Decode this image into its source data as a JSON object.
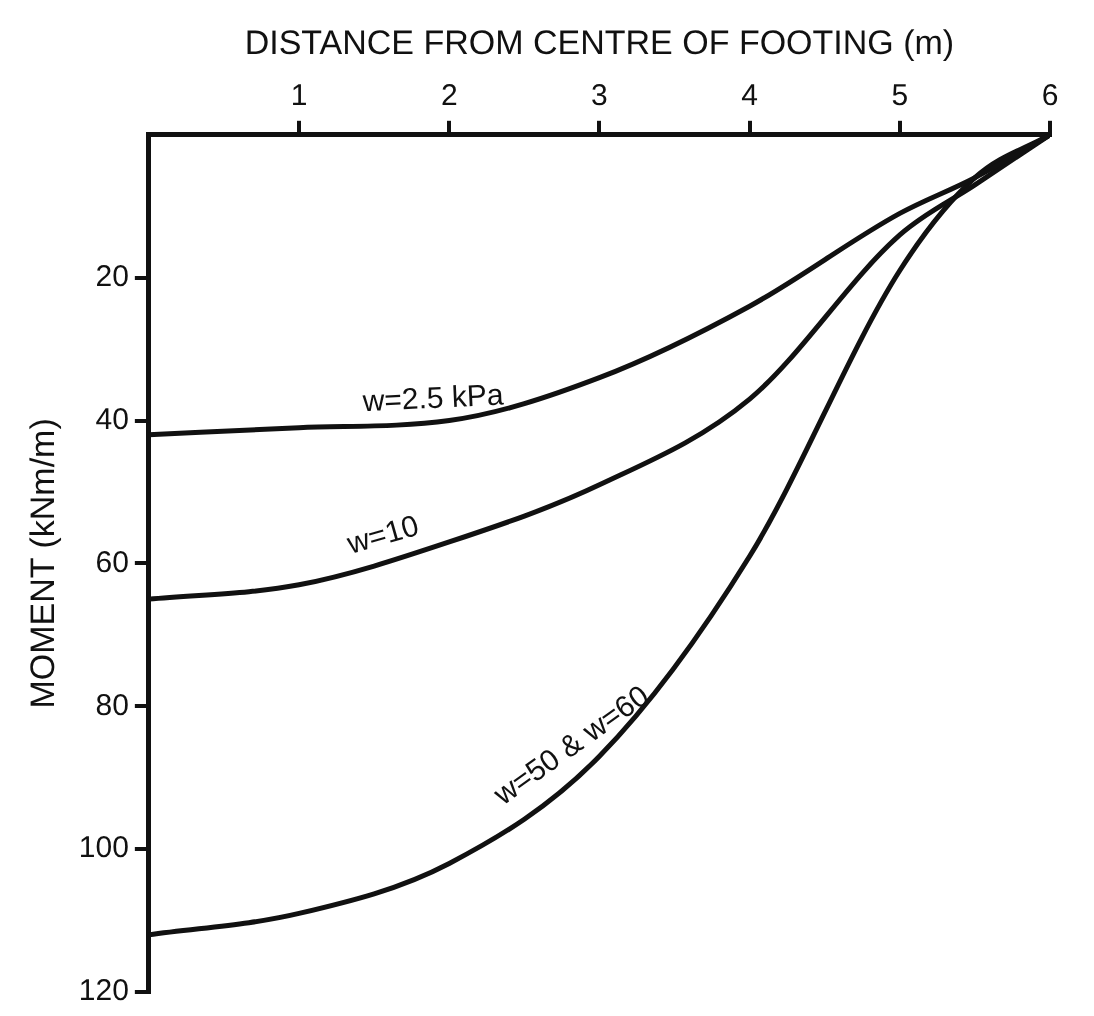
{
  "chart_data": {
    "type": "line",
    "xlabel": "DISTANCE FROM CENTRE OF FOOTING (m)",
    "ylabel": "MOMENT (kNm/m)",
    "xlim": [
      0,
      6
    ],
    "xticks": [
      1,
      2,
      3,
      4,
      5,
      6
    ],
    "ylim": [
      120,
      0
    ],
    "yticks": [
      20,
      40,
      60,
      80,
      100,
      120
    ],
    "grid": false,
    "legend": false,
    "marker": "none",
    "line_style": "solid",
    "series": [
      {
        "color": "#111111",
        "x": [
          0,
          1,
          2,
          3,
          4,
          5,
          5.5,
          6
        ],
        "values": [
          42,
          41,
          40,
          34,
          24,
          11,
          6,
          0
        ]
      },
      {
        "color": "#111111",
        "x": [
          0,
          1,
          2,
          3,
          4,
          5,
          5.5,
          6
        ],
        "values": [
          65,
          63,
          57,
          49,
          37,
          14,
          7,
          0
        ]
      },
      {
        "color": "#111111",
        "x": [
          0,
          1,
          2,
          3,
          4,
          5,
          5.5,
          6
        ],
        "values": [
          112,
          109,
          102,
          87,
          59,
          19,
          6,
          0
        ]
      }
    ],
    "annotations": [
      {
        "text": "w=2.5 kPa",
        "x": 1.9,
        "y": 40
      },
      {
        "text": "w=10",
        "x": 1.6,
        "y": 59
      },
      {
        "text": "w=50 & w=60",
        "x": 2.9,
        "y": 88
      }
    ]
  }
}
